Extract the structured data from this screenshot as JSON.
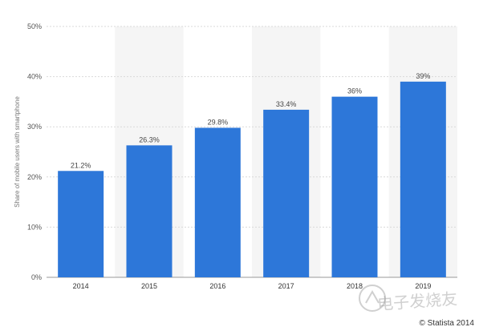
{
  "chart_data": {
    "type": "bar",
    "title": "",
    "xlabel": "",
    "ylabel": "Share of mobile users with smartphone",
    "categories": [
      "2014",
      "2015",
      "2016",
      "2017",
      "2018",
      "2019"
    ],
    "values": [
      21.2,
      26.3,
      29.8,
      33.4,
      36,
      39
    ],
    "data_labels": [
      "21.2%",
      "26.3%",
      "29.8%",
      "33.4%",
      "36%",
      "39%"
    ],
    "ylim": [
      0,
      50
    ],
    "yticks": [
      0,
      10,
      20,
      30,
      40,
      50
    ],
    "ytick_labels": [
      "0%",
      "10%",
      "20%",
      "30%",
      "40%",
      "50%"
    ],
    "grid": true,
    "bar_color": "#2d77d9",
    "band_color": "#f5f5f5"
  },
  "credit": "© Statista 2014",
  "watermark": "电子发烧友"
}
